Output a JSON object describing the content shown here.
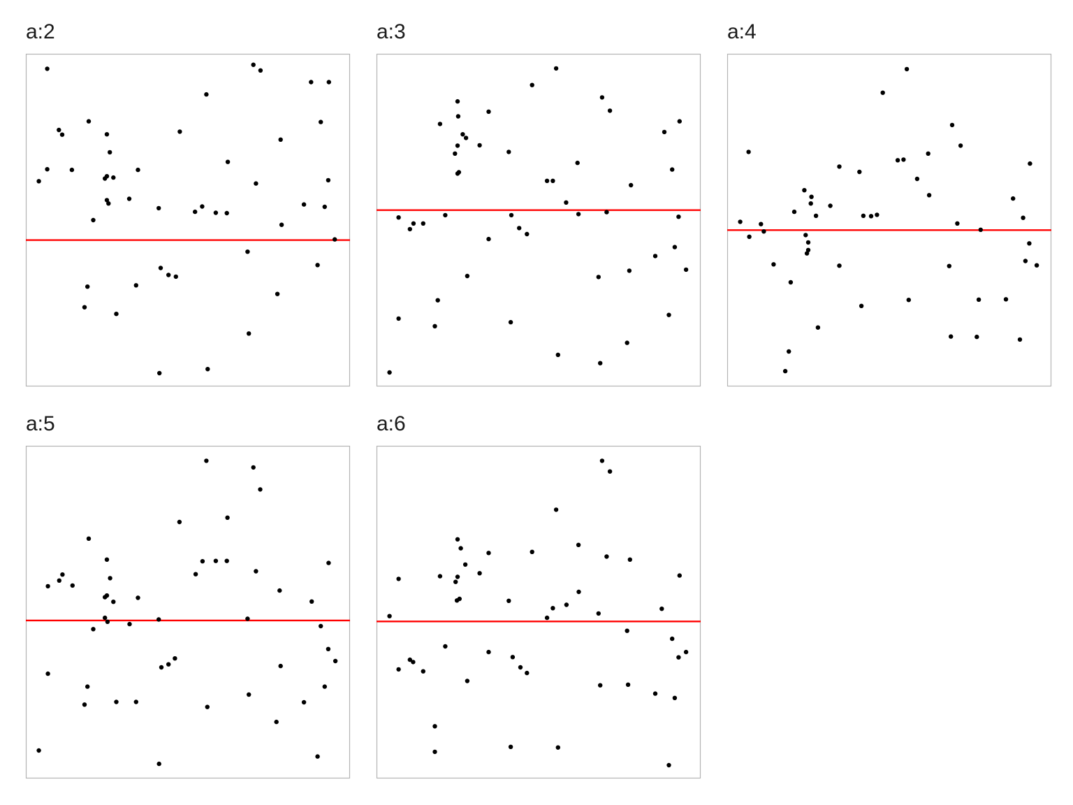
{
  "chart_data": [
    {
      "type": "scatter",
      "title": "a:2",
      "hline_y": 0.44,
      "grid": false,
      "ylim": [
        0,
        1
      ],
      "xlim": [
        0,
        1
      ],
      "colors": {
        "points": "#000000",
        "hline": "#ff0000",
        "frame": "#b3b3b3"
      },
      "points": [
        [
          0.066,
          0.955
        ],
        [
          0.04,
          0.617
        ],
        [
          0.066,
          0.653
        ],
        [
          0.102,
          0.771
        ],
        [
          0.112,
          0.757
        ],
        [
          0.142,
          0.651
        ],
        [
          0.194,
          0.797
        ],
        [
          0.25,
          0.758
        ],
        [
          0.259,
          0.704
        ],
        [
          0.244,
          0.625
        ],
        [
          0.25,
          0.632
        ],
        [
          0.27,
          0.628
        ],
        [
          0.25,
          0.56
        ],
        [
          0.255,
          0.55
        ],
        [
          0.319,
          0.564
        ],
        [
          0.346,
          0.651
        ],
        [
          0.208,
          0.5
        ],
        [
          0.19,
          0.3
        ],
        [
          0.181,
          0.238
        ],
        [
          0.279,
          0.218
        ],
        [
          0.34,
          0.304
        ],
        [
          0.41,
          0.536
        ],
        [
          0.475,
          0.766
        ],
        [
          0.557,
          0.878
        ],
        [
          0.522,
          0.525
        ],
        [
          0.544,
          0.541
        ],
        [
          0.586,
          0.522
        ],
        [
          0.62,
          0.521
        ],
        [
          0.416,
          0.356
        ],
        [
          0.44,
          0.335
        ],
        [
          0.463,
          0.33
        ],
        [
          0.412,
          0.04
        ],
        [
          0.561,
          0.052
        ],
        [
          0.702,
          0.967
        ],
        [
          0.724,
          0.95
        ],
        [
          0.623,
          0.675
        ],
        [
          0.71,
          0.61
        ],
        [
          0.786,
          0.742
        ],
        [
          0.789,
          0.486
        ],
        [
          0.684,
          0.405
        ],
        [
          0.776,
          0.278
        ],
        [
          0.688,
          0.159
        ],
        [
          0.88,
          0.915
        ],
        [
          0.935,
          0.915
        ],
        [
          0.91,
          0.795
        ],
        [
          0.933,
          0.62
        ],
        [
          0.858,
          0.547
        ],
        [
          0.922,
          0.54
        ],
        [
          0.953,
          0.442
        ],
        [
          0.9,
          0.365
        ]
      ]
    },
    {
      "type": "scatter",
      "title": "a:3",
      "hline_y": 0.53,
      "grid": false,
      "ylim": [
        0,
        1
      ],
      "xlim": [
        0,
        1
      ],
      "colors": {
        "points": "#000000",
        "hline": "#ff0000",
        "frame": "#b3b3b3"
      },
      "points": [
        [
          0.04,
          0.042
        ],
        [
          0.068,
          0.508
        ],
        [
          0.103,
          0.473
        ],
        [
          0.114,
          0.49
        ],
        [
          0.144,
          0.49
        ],
        [
          0.068,
          0.204
        ],
        [
          0.18,
          0.181
        ],
        [
          0.189,
          0.259
        ],
        [
          0.196,
          0.789
        ],
        [
          0.25,
          0.857
        ],
        [
          0.252,
          0.812
        ],
        [
          0.25,
          0.724
        ],
        [
          0.242,
          0.7
        ],
        [
          0.266,
          0.758
        ],
        [
          0.276,
          0.747
        ],
        [
          0.25,
          0.64
        ],
        [
          0.254,
          0.644
        ],
        [
          0.212,
          0.515
        ],
        [
          0.28,
          0.332
        ],
        [
          0.318,
          0.725
        ],
        [
          0.346,
          0.443
        ],
        [
          0.346,
          0.826
        ],
        [
          0.408,
          0.705
        ],
        [
          0.416,
          0.515
        ],
        [
          0.44,
          0.476
        ],
        [
          0.464,
          0.458
        ],
        [
          0.414,
          0.193
        ],
        [
          0.48,
          0.906
        ],
        [
          0.554,
          0.956
        ],
        [
          0.526,
          0.618
        ],
        [
          0.544,
          0.618
        ],
        [
          0.585,
          0.553
        ],
        [
          0.62,
          0.672
        ],
        [
          0.56,
          0.095
        ],
        [
          0.623,
          0.518
        ],
        [
          0.696,
          0.869
        ],
        [
          0.72,
          0.829
        ],
        [
          0.71,
          0.524
        ],
        [
          0.685,
          0.329
        ],
        [
          0.785,
          0.605
        ],
        [
          0.78,
          0.348
        ],
        [
          0.773,
          0.131
        ],
        [
          0.69,
          0.07
        ],
        [
          0.888,
          0.765
        ],
        [
          0.935,
          0.797
        ],
        [
          0.912,
          0.652
        ],
        [
          0.932,
          0.51
        ],
        [
          0.86,
          0.392
        ],
        [
          0.92,
          0.419
        ],
        [
          0.955,
          0.351
        ],
        [
          0.902,
          0.215
        ]
      ]
    },
    {
      "type": "scatter",
      "title": "a:4",
      "hline_y": 0.47,
      "grid": false,
      "ylim": [
        0,
        1
      ],
      "xlim": [
        0,
        1
      ],
      "colors": {
        "points": "#000000",
        "hline": "#ff0000",
        "frame": "#b3b3b3"
      },
      "points": [
        [
          0.04,
          0.495
        ],
        [
          0.068,
          0.45
        ],
        [
          0.066,
          0.705
        ],
        [
          0.104,
          0.488
        ],
        [
          0.113,
          0.466
        ],
        [
          0.143,
          0.367
        ],
        [
          0.179,
          0.046
        ],
        [
          0.19,
          0.105
        ],
        [
          0.196,
          0.313
        ],
        [
          0.207,
          0.525
        ],
        [
          0.238,
          0.59
        ],
        [
          0.258,
          0.55
        ],
        [
          0.26,
          0.57
        ],
        [
          0.274,
          0.513
        ],
        [
          0.242,
          0.455
        ],
        [
          0.25,
          0.433
        ],
        [
          0.246,
          0.4
        ],
        [
          0.25,
          0.41
        ],
        [
          0.28,
          0.177
        ],
        [
          0.318,
          0.543
        ],
        [
          0.346,
          0.363
        ],
        [
          0.346,
          0.661
        ],
        [
          0.408,
          0.645
        ],
        [
          0.414,
          0.242
        ],
        [
          0.42,
          0.513
        ],
        [
          0.444,
          0.512
        ],
        [
          0.462,
          0.516
        ],
        [
          0.48,
          0.883
        ],
        [
          0.554,
          0.954
        ],
        [
          0.526,
          0.68
        ],
        [
          0.544,
          0.682
        ],
        [
          0.586,
          0.624
        ],
        [
          0.62,
          0.7
        ],
        [
          0.56,
          0.26
        ],
        [
          0.623,
          0.575
        ],
        [
          0.694,
          0.786
        ],
        [
          0.72,
          0.724
        ],
        [
          0.71,
          0.49
        ],
        [
          0.685,
          0.362
        ],
        [
          0.782,
          0.471
        ],
        [
          0.776,
          0.261
        ],
        [
          0.77,
          0.149
        ],
        [
          0.69,
          0.15
        ],
        [
          0.934,
          0.67
        ],
        [
          0.882,
          0.565
        ],
        [
          0.913,
          0.507
        ],
        [
          0.932,
          0.43
        ],
        [
          0.86,
          0.262
        ],
        [
          0.92,
          0.377
        ],
        [
          0.955,
          0.364
        ],
        [
          0.903,
          0.141
        ]
      ]
    },
    {
      "type": "scatter",
      "title": "a:5",
      "hline_y": 0.475,
      "grid": false,
      "ylim": [
        0,
        1
      ],
      "xlim": [
        0,
        1
      ],
      "colors": {
        "points": "#000000",
        "hline": "#ff0000",
        "frame": "#b3b3b3"
      },
      "points": [
        [
          0.04,
          0.084
        ],
        [
          0.068,
          0.315
        ],
        [
          0.068,
          0.578
        ],
        [
          0.103,
          0.595
        ],
        [
          0.113,
          0.613
        ],
        [
          0.144,
          0.58
        ],
        [
          0.194,
          0.721
        ],
        [
          0.25,
          0.658
        ],
        [
          0.26,
          0.602
        ],
        [
          0.244,
          0.545
        ],
        [
          0.25,
          0.55
        ],
        [
          0.27,
          0.531
        ],
        [
          0.244,
          0.483
        ],
        [
          0.252,
          0.471
        ],
        [
          0.32,
          0.464
        ],
        [
          0.346,
          0.543
        ],
        [
          0.208,
          0.449
        ],
        [
          0.19,
          0.276
        ],
        [
          0.181,
          0.222
        ],
        [
          0.279,
          0.23
        ],
        [
          0.34,
          0.23
        ],
        [
          0.41,
          0.478
        ],
        [
          0.474,
          0.771
        ],
        [
          0.557,
          0.955
        ],
        [
          0.524,
          0.614
        ],
        [
          0.545,
          0.653
        ],
        [
          0.586,
          0.654
        ],
        [
          0.62,
          0.654
        ],
        [
          0.418,
          0.334
        ],
        [
          0.44,
          0.343
        ],
        [
          0.46,
          0.361
        ],
        [
          0.411,
          0.044
        ],
        [
          0.56,
          0.215
        ],
        [
          0.702,
          0.935
        ],
        [
          0.723,
          0.869
        ],
        [
          0.622,
          0.784
        ],
        [
          0.71,
          0.623
        ],
        [
          0.783,
          0.565
        ],
        [
          0.786,
          0.338
        ],
        [
          0.684,
          0.48
        ],
        [
          0.773,
          0.17
        ],
        [
          0.688,
          0.252
        ],
        [
          0.934,
          0.648
        ],
        [
          0.882,
          0.532
        ],
        [
          0.91,
          0.458
        ],
        [
          0.933,
          0.389
        ],
        [
          0.858,
          0.229
        ],
        [
          0.922,
          0.276
        ],
        [
          0.955,
          0.353
        ],
        [
          0.9,
          0.066
        ]
      ]
    },
    {
      "type": "scatter",
      "title": "a:6",
      "hline_y": 0.472,
      "grid": false,
      "ylim": [
        0,
        1
      ],
      "xlim": [
        0,
        1
      ],
      "colors": {
        "points": "#000000",
        "hline": "#ff0000",
        "frame": "#b3b3b3"
      },
      "points": [
        [
          0.04,
          0.488
        ],
        [
          0.068,
          0.6
        ],
        [
          0.068,
          0.328
        ],
        [
          0.103,
          0.357
        ],
        [
          0.113,
          0.35
        ],
        [
          0.144,
          0.322
        ],
        [
          0.18,
          0.157
        ],
        [
          0.18,
          0.08
        ],
        [
          0.196,
          0.608
        ],
        [
          0.25,
          0.719
        ],
        [
          0.26,
          0.692
        ],
        [
          0.25,
          0.606
        ],
        [
          0.244,
          0.591
        ],
        [
          0.274,
          0.643
        ],
        [
          0.248,
          0.535
        ],
        [
          0.256,
          0.54
        ],
        [
          0.212,
          0.397
        ],
        [
          0.28,
          0.293
        ],
        [
          0.318,
          0.617
        ],
        [
          0.346,
          0.678
        ],
        [
          0.346,
          0.38
        ],
        [
          0.408,
          0.534
        ],
        [
          0.414,
          0.095
        ],
        [
          0.42,
          0.365
        ],
        [
          0.444,
          0.334
        ],
        [
          0.464,
          0.317
        ],
        [
          0.48,
          0.681
        ],
        [
          0.554,
          0.808
        ],
        [
          0.526,
          0.483
        ],
        [
          0.544,
          0.512
        ],
        [
          0.586,
          0.522
        ],
        [
          0.624,
          0.561
        ],
        [
          0.623,
          0.702
        ],
        [
          0.56,
          0.093
        ],
        [
          0.696,
          0.955
        ],
        [
          0.72,
          0.923
        ],
        [
          0.71,
          0.667
        ],
        [
          0.685,
          0.496
        ],
        [
          0.782,
          0.658
        ],
        [
          0.776,
          0.282
        ],
        [
          0.773,
          0.444
        ],
        [
          0.69,
          0.28
        ],
        [
          0.88,
          0.51
        ],
        [
          0.935,
          0.61
        ],
        [
          0.912,
          0.42
        ],
        [
          0.932,
          0.364
        ],
        [
          0.86,
          0.255
        ],
        [
          0.92,
          0.242
        ],
        [
          0.955,
          0.38
        ],
        [
          0.902,
          0.04
        ]
      ]
    }
  ]
}
